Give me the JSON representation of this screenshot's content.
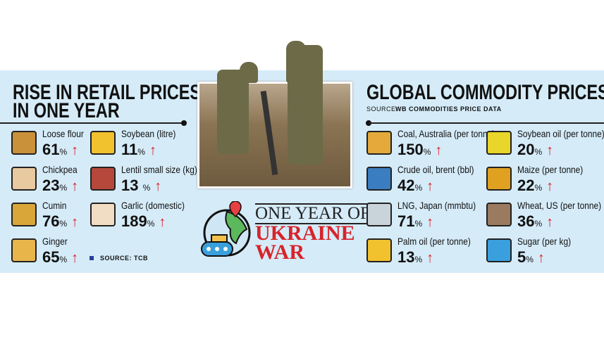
{
  "left": {
    "title_line1": "RISE IN RETAIL PRICES",
    "title_line2": "IN ONE YEAR",
    "source": "SOURCE: TCB",
    "items": [
      {
        "label": "Loose flour",
        "value": "61",
        "unit": "%",
        "icon": "flour-bag-icon",
        "color": "#c9913a"
      },
      {
        "label": "Soybean (litre)",
        "value": "11",
        "unit": "%",
        "icon": "oil-bottle-icon",
        "color": "#f2c12e"
      },
      {
        "label": "Chickpea",
        "value": "23",
        "unit": "%",
        "icon": "chickpea-icon",
        "color": "#e8c9a0"
      },
      {
        "label": "Lentil small size (kg)",
        "value": "13 ",
        "unit": "%",
        "icon": "lentil-icon",
        "color": "#b5483a"
      },
      {
        "label": "Cumin",
        "value": "76",
        "unit": "%",
        "icon": "cumin-icon",
        "color": "#d9a63a"
      },
      {
        "label": "Garlic (domestic)",
        "value": "189",
        "unit": "%",
        "icon": "garlic-icon",
        "color": "#f1dcc4"
      },
      {
        "label": "Ginger",
        "value": "65",
        "unit": "%",
        "icon": "ginger-icon",
        "color": "#e8b54a"
      }
    ]
  },
  "center": {
    "title_line1": "ONE YEAR OF",
    "title_line2": "UKRAINE",
    "title_line3": "WAR"
  },
  "right": {
    "title": "GLOBAL COMMODITY PRICES",
    "source_prefix": "SOURCE:",
    "source_name": "WB COMMODITIES PRICE DATA",
    "items": [
      {
        "label": "Coal, Australia (per tonne)",
        "value": "150",
        "unit": "%",
        "icon": "coal-cart-icon",
        "color": "#e3a93a"
      },
      {
        "label": "Soybean oil (per tonne)",
        "value": "20",
        "unit": "%",
        "icon": "oil-barrel-icon",
        "color": "#e9d62a"
      },
      {
        "label": "Crude oil, brent (bbl)",
        "value": "42",
        "unit": "%",
        "icon": "crude-barrel-icon",
        "color": "#3a7dc0"
      },
      {
        "label": "Maize (per tonne)",
        "value": "22",
        "unit": "%",
        "icon": "corn-icon",
        "color": "#e0a020"
      },
      {
        "label": "LNG, Japan (mmbtu)",
        "value": "71",
        "unit": "%",
        "icon": "lng-plant-icon",
        "color": "#c9d3da"
      },
      {
        "label": "Wheat, US (per tonne)",
        "value": "36",
        "unit": "%",
        "icon": "wheat-sack-icon",
        "color": "#9a7b5f"
      },
      {
        "label": "Palm oil (per tonne)",
        "value": "13",
        "unit": "%",
        "icon": "palm-oil-icon",
        "color": "#f2c12e"
      },
      {
        "label": "Sugar (per kg)",
        "value": "5",
        "unit": "%",
        "icon": "sugar-bag-icon",
        "color": "#3aa0dd"
      }
    ]
  },
  "accent": "#d8232a",
  "background": "#d5ebf8"
}
